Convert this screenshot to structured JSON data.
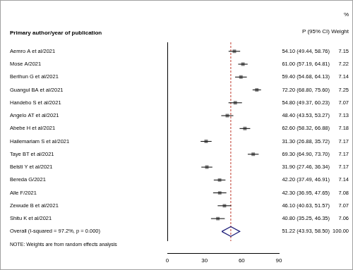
{
  "chart_data": {
    "type": "forest",
    "row_header": "Primary author/year of publication",
    "ci_header": "P (95% CI)",
    "weight_header": [
      "%",
      "Weight"
    ],
    "studies": {
      "color": "#808080",
      "categories": [
        "Aemro A et al/2021",
        "Mose A/2021",
        "Berihun G et al/2021",
        "Guangul BA et al/2021",
        "Handebo S et al/2021",
        "Angelo AT et al/2021",
        "Abebe H et al/2021",
        "Hailemariam S et al/2021",
        "Taye BT et al/2021",
        "Belsti Y et al/2021",
        "Bereda G/2021",
        "Alle F/2021",
        "Zewude B et al/2021",
        "Shitu K et al/2021"
      ],
      "values": [
        54.1,
        61.0,
        59.4,
        72.2,
        54.8,
        48.4,
        62.6,
        31.3,
        69.3,
        31.9,
        42.2,
        42.3,
        46.1,
        40.8
      ],
      "lower": [
        49.44,
        57.19,
        54.68,
        68.8,
        49.37,
        43.53,
        58.32,
        26.88,
        64.9,
        27.46,
        37.49,
        36.95,
        40.63,
        35.25
      ],
      "upper": [
        58.76,
        64.81,
        64.13,
        75.6,
        60.23,
        53.27,
        66.88,
        35.72,
        73.7,
        36.34,
        46.91,
        47.65,
        51.57,
        46.35
      ],
      "value_labels": [
        "54.10 (49.44, 58.76)",
        "61.00 (57.19, 64.81)",
        "59.40 (54.68, 64.13)",
        "72.20 (68.80, 75.60)",
        "54.80 (49.37, 60.23)",
        "48.40 (43.53, 53.27)",
        "62.60 (58.32, 66.88)",
        "31.30 (26.88, 35.72)",
        "69.30 (64.90, 73.70)",
        "31.90 (27.46, 36.34)",
        "42.20 (37.49, 46.91)",
        "42.30 (36.95, 47.65)",
        "46.10 (40.63, 51.57)",
        "40.80 (35.25, 46.35)"
      ],
      "weights": [
        7.15,
        7.22,
        7.14,
        7.25,
        7.07,
        7.13,
        7.18,
        7.17,
        7.17,
        7.17,
        7.14,
        7.08,
        7.07,
        7.06
      ],
      "weight_labels": [
        "7.15",
        "7.22",
        "7.14",
        "7.25",
        "7.07",
        "7.13",
        "7.18",
        "7.17",
        "7.17",
        "7.17",
        "7.14",
        "7.08",
        "7.07",
        "7.06"
      ]
    },
    "overall": {
      "label": "Overall (I-squared = 97.2%, p = 0.000)",
      "value": 51.22,
      "lower": 43.93,
      "upper": 58.5,
      "value_label": "51.22 (43.93, 58.50)",
      "weight_label": "100.00",
      "color": "#1f1f7a"
    },
    "note": "NOTE: Weights are from random effects analysis",
    "xlim": [
      0,
      90
    ],
    "xticks": [
      0,
      30,
      60,
      90
    ],
    "grid": false
  }
}
